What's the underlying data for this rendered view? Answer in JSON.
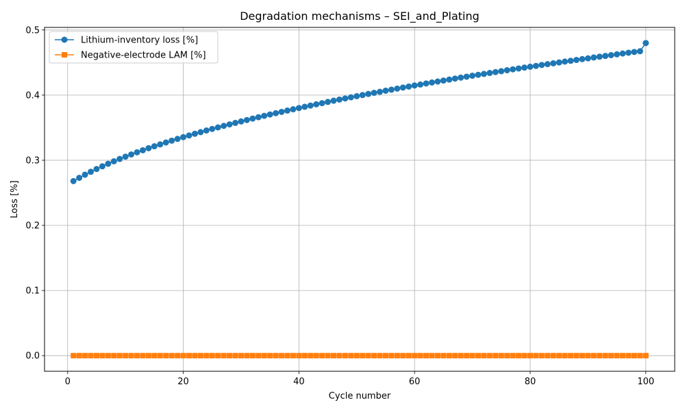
{
  "chart_data": {
    "type": "line",
    "title": "Degradation mechanisms – SEI_and_Plating",
    "xlabel": "Cycle number",
    "ylabel": "Loss [%]",
    "xlim": [
      -4,
      105
    ],
    "ylim": [
      -0.024,
      0.504
    ],
    "xticks": [
      0,
      20,
      40,
      60,
      80,
      100
    ],
    "xtick_labels": [
      "0",
      "20",
      "40",
      "60",
      "80",
      "100"
    ],
    "yticks": [
      0.0,
      0.1,
      0.2,
      0.3,
      0.4,
      0.5
    ],
    "ytick_labels": [
      "0.0",
      "0.1",
      "0.2",
      "0.3",
      "0.4",
      "0.5"
    ],
    "grid": true,
    "legend_position": "upper-left",
    "x": [
      1,
      2,
      3,
      4,
      5,
      6,
      7,
      8,
      9,
      10,
      11,
      12,
      13,
      14,
      15,
      16,
      17,
      18,
      19,
      20,
      21,
      22,
      23,
      24,
      25,
      26,
      27,
      28,
      29,
      30,
      31,
      32,
      33,
      34,
      35,
      36,
      37,
      38,
      39,
      40,
      41,
      42,
      43,
      44,
      45,
      46,
      47,
      48,
      49,
      50,
      51,
      52,
      53,
      54,
      55,
      56,
      57,
      58,
      59,
      60,
      61,
      62,
      63,
      64,
      65,
      66,
      67,
      68,
      69,
      70,
      71,
      72,
      73,
      74,
      75,
      76,
      77,
      78,
      79,
      80,
      81,
      82,
      83,
      84,
      85,
      86,
      87,
      88,
      89,
      90,
      91,
      92,
      93,
      94,
      95,
      96,
      97,
      98,
      99,
      100
    ],
    "series": [
      {
        "name": "Lithium-inventory loss [%]",
        "color": "#1f77b4",
        "marker": "circle",
        "values": [
          0.268,
          0.273,
          0.2778,
          0.2823,
          0.2866,
          0.2907,
          0.2946,
          0.2984,
          0.302,
          0.3055,
          0.3089,
          0.3122,
          0.3154,
          0.3185,
          0.3215,
          0.3244,
          0.3273,
          0.3301,
          0.3328,
          0.3355,
          0.3381,
          0.3407,
          0.3432,
          0.3457,
          0.3481,
          0.3505,
          0.3528,
          0.3551,
          0.3574,
          0.3596,
          0.3618,
          0.364,
          0.3661,
          0.3682,
          0.3703,
          0.3723,
          0.3743,
          0.3763,
          0.3783,
          0.3802,
          0.3821,
          0.384,
          0.3859,
          0.3877,
          0.3896,
          0.3914,
          0.3932,
          0.3949,
          0.3967,
          0.3984,
          0.4001,
          0.4018,
          0.4035,
          0.4051,
          0.4068,
          0.4084,
          0.41,
          0.4116,
          0.4132,
          0.4148,
          0.4163,
          0.4179,
          0.4194,
          0.4209,
          0.4224,
          0.4239,
          0.4254,
          0.4269,
          0.4283,
          0.4298,
          0.4312,
          0.4326,
          0.434,
          0.4354,
          0.4368,
          0.4382,
          0.4396,
          0.4409,
          0.4423,
          0.4436,
          0.4449,
          0.4463,
          0.4476,
          0.4489,
          0.4502,
          0.4515,
          0.4527,
          0.454,
          0.4553,
          0.4565,
          0.4578,
          0.459,
          0.4602,
          0.4614,
          0.4627,
          0.4639,
          0.4651,
          0.4663,
          0.4674,
          0.48
        ]
      },
      {
        "name": "Negative-electrode LAM [%]",
        "color": "#ff7f0e",
        "marker": "square",
        "values": [
          0,
          0,
          0,
          0,
          0,
          0,
          0,
          0,
          0,
          0,
          0,
          0,
          0,
          0,
          0,
          0,
          0,
          0,
          0,
          0,
          0,
          0,
          0,
          0,
          0,
          0,
          0,
          0,
          0,
          0,
          0,
          0,
          0,
          0,
          0,
          0,
          0,
          0,
          0,
          0,
          0,
          0,
          0,
          0,
          0,
          0,
          0,
          0,
          0,
          0,
          0,
          0,
          0,
          0,
          0,
          0,
          0,
          0,
          0,
          0,
          0,
          0,
          0,
          0,
          0,
          0,
          0,
          0,
          0,
          0,
          0,
          0,
          0,
          0,
          0,
          0,
          0,
          0,
          0,
          0,
          0,
          0,
          0,
          0,
          0,
          0,
          0,
          0,
          0,
          0,
          0,
          0,
          0,
          0,
          0,
          0,
          0,
          0,
          0,
          0
        ]
      }
    ]
  }
}
